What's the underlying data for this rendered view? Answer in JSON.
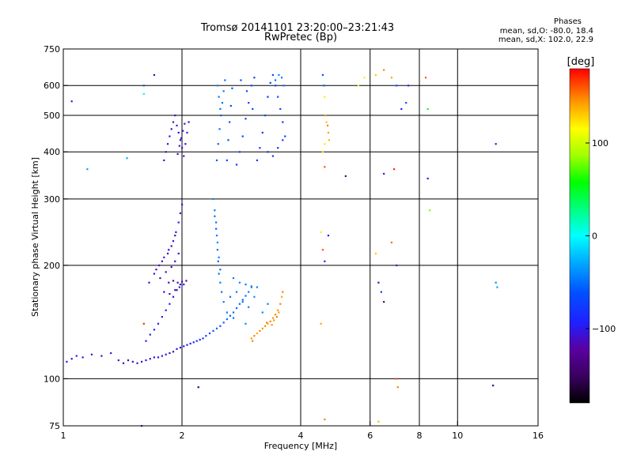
{
  "figure": {
    "title_line1": "Tromsø 20141101 23:20:00–23:21:43",
    "title_line2": "RwPretec (Bp)",
    "phases_heading": "Phases",
    "phases_line_o": "mean, sd,O: -80.0, 18.4",
    "phases_line_x": "mean, sd,X: 102.0, 22.9",
    "xlabel": "Frequency [MHz]",
    "ylabel": "Stationary phase Virtual Height [km]"
  },
  "colorbar": {
    "label": "[deg]",
    "ticks": [
      {
        "value": 100,
        "label": "100"
      },
      {
        "value": 0,
        "label": "0"
      },
      {
        "value": -100,
        "label": "−100"
      }
    ],
    "range": [
      -180,
      180
    ]
  },
  "chart_data": {
    "type": "scatter",
    "x_scale": "log",
    "y_scale": "log",
    "xlim": [
      1,
      16
    ],
    "ylim": [
      75,
      750
    ],
    "xticks": [
      {
        "value": 1,
        "label": "1"
      },
      {
        "value": 2,
        "label": "2"
      },
      {
        "value": 4,
        "label": "4"
      },
      {
        "value": 6,
        "label": "6"
      },
      {
        "value": 8,
        "label": "8"
      },
      {
        "value": 10,
        "label": "10"
      },
      {
        "value": 16,
        "label": "16"
      }
    ],
    "yticks": [
      {
        "value": 75,
        "label": "75"
      },
      {
        "value": 100,
        "label": "100"
      },
      {
        "value": 200,
        "label": "200"
      },
      {
        "value": 300,
        "label": "300"
      },
      {
        "value": 400,
        "label": "400"
      },
      {
        "value": 500,
        "label": "500"
      },
      {
        "value": 600,
        "label": "600"
      },
      {
        "value": 750,
        "label": "750"
      }
    ],
    "grid_x": [
      2,
      4,
      6,
      8,
      10
    ],
    "grid_y": [
      100,
      200,
      300,
      400,
      500,
      600
    ],
    "points": [
      [
        1.02,
        111,
        -100
      ],
      [
        1.05,
        113,
        -110
      ],
      [
        1.08,
        115,
        -95
      ],
      [
        1.12,
        114,
        -105
      ],
      [
        1.18,
        116,
        -100
      ],
      [
        1.25,
        115,
        -110
      ],
      [
        1.32,
        117,
        -105
      ],
      [
        1.38,
        112,
        -100
      ],
      [
        1.42,
        110,
        -130
      ],
      [
        1.46,
        112,
        -110
      ],
      [
        1.5,
        111,
        -110
      ],
      [
        1.54,
        110,
        -105
      ],
      [
        1.58,
        111,
        -110
      ],
      [
        1.62,
        112,
        -100
      ],
      [
        1.66,
        113,
        -105
      ],
      [
        1.7,
        114,
        -100
      ],
      [
        1.74,
        114,
        -110
      ],
      [
        1.78,
        115,
        -95
      ],
      [
        1.82,
        116,
        -100
      ],
      [
        1.86,
        117,
        -110
      ],
      [
        1.9,
        118,
        -105
      ],
      [
        1.94,
        120,
        -110
      ],
      [
        1.98,
        121,
        -100
      ],
      [
        2.02,
        122,
        -95
      ],
      [
        2.06,
        123,
        -100
      ],
      [
        2.1,
        124,
        -95
      ],
      [
        2.14,
        125,
        -90
      ],
      [
        2.18,
        126,
        -85
      ],
      [
        2.22,
        127,
        -80
      ],
      [
        2.26,
        128,
        -75
      ],
      [
        2.3,
        130,
        -70
      ],
      [
        2.35,
        132,
        -65
      ],
      [
        2.4,
        134,
        -60
      ],
      [
        2.45,
        136,
        -55
      ],
      [
        2.5,
        138,
        -60
      ],
      [
        2.55,
        141,
        -55
      ],
      [
        2.6,
        144,
        -50
      ],
      [
        2.65,
        147,
        -55
      ],
      [
        2.7,
        150,
        -50
      ],
      [
        2.75,
        154,
        -55
      ],
      [
        2.8,
        158,
        -50
      ],
      [
        2.85,
        162,
        -55
      ],
      [
        2.9,
        166,
        -50
      ],
      [
        2.95,
        170,
        -45
      ],
      [
        3.0,
        175,
        -50
      ],
      [
        1.62,
        126,
        -95
      ],
      [
        1.66,
        131,
        -100
      ],
      [
        1.7,
        135,
        -95
      ],
      [
        1.74,
        140,
        -100
      ],
      [
        1.78,
        146,
        -90
      ],
      [
        1.82,
        152,
        -100
      ],
      [
        1.86,
        158,
        -95
      ],
      [
        1.9,
        165,
        -100
      ],
      [
        1.94,
        172,
        -110
      ],
      [
        1.98,
        178,
        -100
      ],
      [
        1.65,
        180,
        -110
      ],
      [
        1.7,
        190,
        -105
      ],
      [
        1.75,
        200,
        -110
      ],
      [
        1.8,
        210,
        -100
      ],
      [
        1.85,
        220,
        -110
      ],
      [
        1.9,
        232,
        -105
      ],
      [
        1.93,
        245,
        -110
      ],
      [
        1.96,
        260,
        -100
      ],
      [
        1.98,
        275,
        -110
      ],
      [
        2.0,
        290,
        -100
      ],
      [
        1.72,
        195,
        -120
      ],
      [
        1.78,
        205,
        -115
      ],
      [
        1.84,
        215,
        -110
      ],
      [
        1.88,
        225,
        -120
      ],
      [
        1.92,
        240,
        -115
      ],
      [
        1.76,
        185,
        -120
      ],
      [
        1.82,
        192,
        -110
      ],
      [
        1.88,
        198,
        -115
      ],
      [
        1.92,
        205,
        -120
      ],
      [
        1.96,
        215,
        -110
      ],
      [
        1.85,
        180,
        -115
      ],
      [
        1.9,
        182,
        -120
      ],
      [
        1.95,
        180,
        -110
      ],
      [
        2.0,
        181,
        -115
      ],
      [
        2.05,
        182,
        -120
      ],
      [
        1.8,
        170,
        -110
      ],
      [
        1.86,
        168,
        -115
      ],
      [
        1.92,
        172,
        -105
      ],
      [
        1.97,
        175,
        -110
      ],
      [
        2.02,
        178,
        -100
      ],
      [
        2.4,
        300,
        -40
      ],
      [
        2.42,
        280,
        -45
      ],
      [
        2.44,
        260,
        -50
      ],
      [
        2.45,
        240,
        -45
      ],
      [
        2.46,
        220,
        -50
      ],
      [
        2.47,
        205,
        -55
      ],
      [
        2.48,
        190,
        -50
      ],
      [
        2.5,
        180,
        -45
      ],
      [
        2.52,
        170,
        -50
      ],
      [
        2.55,
        160,
        -45
      ],
      [
        2.42,
        270,
        -50
      ],
      [
        2.44,
        250,
        -55
      ],
      [
        2.46,
        230,
        -40
      ],
      [
        2.48,
        210,
        -45
      ],
      [
        2.5,
        195,
        -50
      ],
      [
        2.7,
        185,
        -45
      ],
      [
        2.8,
        180,
        -40
      ],
      [
        2.9,
        178,
        -45
      ],
      [
        3.0,
        176,
        -40
      ],
      [
        3.1,
        175,
        -45
      ],
      [
        2.65,
        165,
        -50
      ],
      [
        2.75,
        170,
        -45
      ],
      [
        2.85,
        160,
        -40
      ],
      [
        2.95,
        155,
        -45
      ],
      [
        3.05,
        165,
        -40
      ],
      [
        2.6,
        150,
        -45
      ],
      [
        2.7,
        145,
        -50
      ],
      [
        2.9,
        140,
        -40
      ],
      [
        3.2,
        150,
        -40
      ],
      [
        3.3,
        158,
        -45
      ],
      [
        3.0,
        128,
        145
      ],
      [
        3.05,
        130,
        150
      ],
      [
        3.1,
        132,
        140
      ],
      [
        3.15,
        134,
        150
      ],
      [
        3.2,
        136,
        145
      ],
      [
        3.25,
        138,
        150
      ],
      [
        3.3,
        140,
        140
      ],
      [
        3.35,
        142,
        150
      ],
      [
        3.4,
        145,
        145
      ],
      [
        3.45,
        148,
        150
      ],
      [
        3.5,
        152,
        145
      ],
      [
        3.55,
        158,
        150
      ],
      [
        3.58,
        165,
        140
      ],
      [
        3.6,
        170,
        150
      ],
      [
        3.38,
        139,
        145
      ],
      [
        3.28,
        141,
        150
      ],
      [
        3.42,
        143,
        145
      ],
      [
        3.48,
        146,
        150
      ],
      [
        3.52,
        150,
        140
      ],
      [
        3.02,
        126,
        150
      ],
      [
        1.8,
        380,
        -110
      ],
      [
        1.82,
        400,
        -105
      ],
      [
        1.84,
        420,
        -110
      ],
      [
        1.86,
        440,
        -100
      ],
      [
        1.88,
        460,
        -110
      ],
      [
        1.9,
        480,
        -105
      ],
      [
        1.92,
        500,
        -110
      ],
      [
        1.94,
        470,
        -100
      ],
      [
        1.96,
        450,
        -105
      ],
      [
        1.98,
        430,
        -110
      ],
      [
        2.0,
        410,
        -100
      ],
      [
        2.02,
        390,
        -105
      ],
      [
        2.04,
        420,
        -110
      ],
      [
        2.06,
        450,
        -100
      ],
      [
        2.08,
        480,
        -110
      ],
      [
        1.95,
        395,
        -115
      ],
      [
        1.97,
        415,
        -110
      ],
      [
        1.99,
        435,
        -100
      ],
      [
        2.01,
        455,
        -110
      ],
      [
        2.03,
        475,
        -105
      ],
      [
        2.45,
        380,
        -60
      ],
      [
        2.47,
        420,
        -55
      ],
      [
        2.49,
        460,
        -50
      ],
      [
        2.51,
        500,
        -55
      ],
      [
        2.53,
        540,
        -50
      ],
      [
        2.55,
        580,
        -45
      ],
      [
        2.57,
        620,
        -50
      ],
      [
        2.46,
        600,
        -40
      ],
      [
        2.48,
        560,
        -45
      ],
      [
        2.5,
        520,
        -50
      ],
      [
        2.6,
        380,
        -70
      ],
      [
        2.62,
        430,
        -65
      ],
      [
        2.64,
        480,
        -60
      ],
      [
        2.66,
        530,
        -65
      ],
      [
        2.68,
        590,
        -60
      ],
      [
        2.75,
        370,
        -80
      ],
      [
        2.8,
        400,
        -75
      ],
      [
        2.85,
        440,
        -70
      ],
      [
        2.9,
        490,
        -75
      ],
      [
        2.95,
        540,
        -70
      ],
      [
        3.0,
        600,
        -65
      ],
      [
        3.05,
        630,
        -70
      ],
      [
        2.82,
        620,
        -60
      ],
      [
        2.92,
        580,
        -65
      ],
      [
        3.02,
        520,
        -70
      ],
      [
        3.1,
        380,
        -80
      ],
      [
        3.15,
        410,
        -75
      ],
      [
        3.2,
        450,
        -80
      ],
      [
        3.25,
        500,
        -70
      ],
      [
        3.3,
        560,
        -75
      ],
      [
        3.35,
        610,
        -70
      ],
      [
        3.4,
        640,
        -65
      ],
      [
        3.45,
        600,
        -70
      ],
      [
        3.5,
        560,
        -65
      ],
      [
        3.55,
        520,
        -70
      ],
      [
        3.6,
        480,
        -75
      ],
      [
        3.65,
        440,
        -70
      ],
      [
        3.3,
        400,
        -85
      ],
      [
        3.4,
        390,
        -80
      ],
      [
        3.5,
        410,
        -85
      ],
      [
        3.6,
        430,
        -80
      ],
      [
        3.62,
        600,
        -50
      ],
      [
        3.58,
        630,
        -45
      ],
      [
        3.52,
        640,
        -40
      ],
      [
        3.45,
        620,
        -50
      ],
      [
        4.55,
        640,
        -60
      ],
      [
        4.58,
        600,
        -55
      ],
      [
        4.6,
        560,
        120
      ],
      [
        4.65,
        480,
        130
      ],
      [
        4.7,
        450,
        140
      ],
      [
        4.6,
        420,
        120
      ],
      [
        4.55,
        400,
        125
      ],
      [
        4.62,
        500,
        145
      ],
      [
        4.68,
        470,
        150
      ],
      [
        4.72,
        430,
        135
      ],
      [
        6.2,
        640,
        130
      ],
      [
        6.5,
        660,
        150
      ],
      [
        6.8,
        630,
        140
      ],
      [
        7.0,
        600,
        -60
      ],
      [
        7.2,
        520,
        -90
      ],
      [
        4.5,
        245,
        120
      ],
      [
        4.55,
        220,
        160
      ],
      [
        4.6,
        205,
        -90
      ],
      [
        4.7,
        240,
        -100
      ],
      [
        6.2,
        215,
        130
      ],
      [
        6.3,
        180,
        -120
      ],
      [
        6.4,
        170,
        -80
      ],
      [
        6.5,
        160,
        -130
      ],
      [
        6.8,
        230,
        155
      ],
      [
        7.0,
        200,
        -100
      ],
      [
        8.3,
        630,
        160
      ],
      [
        8.4,
        520,
        60
      ],
      [
        8.5,
        280,
        80
      ],
      [
        8.4,
        340,
        -100
      ],
      [
        12.5,
        420,
        -100
      ],
      [
        12.5,
        180,
        -40
      ],
      [
        12.6,
        175,
        -30
      ],
      [
        1.05,
        545,
        -100
      ],
      [
        1.15,
        360,
        -30
      ],
      [
        1.45,
        385,
        -30
      ],
      [
        1.6,
        570,
        10
      ],
      [
        1.6,
        600,
        -60
      ],
      [
        1.7,
        640,
        -120
      ],
      [
        1.6,
        140,
        170
      ],
      [
        1.58,
        75,
        -70
      ],
      [
        2.2,
        95,
        -150
      ],
      [
        4.5,
        140,
        140
      ],
      [
        4.6,
        78,
        150
      ],
      [
        6.3,
        77,
        135
      ],
      [
        7.0,
        100,
        160
      ],
      [
        7.05,
        95,
        150
      ],
      [
        12.3,
        96,
        -140
      ],
      [
        5.2,
        345,
        -130
      ],
      [
        6.5,
        350,
        -100
      ],
      [
        6.9,
        360,
        170
      ],
      [
        4.6,
        365,
        160
      ],
      [
        5.6,
        600,
        110
      ],
      [
        5.8,
        630,
        120
      ],
      [
        7.5,
        600,
        -90
      ],
      [
        7.4,
        540,
        -60
      ]
    ]
  }
}
